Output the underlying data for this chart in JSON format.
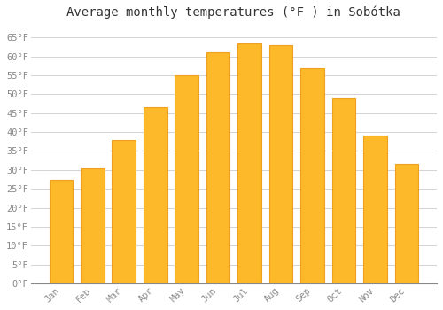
{
  "title": "Average monthly temperatures (°F ) in Sobótka",
  "months": [
    "Jan",
    "Feb",
    "Mar",
    "Apr",
    "May",
    "Jun",
    "Jul",
    "Aug",
    "Sep",
    "Oct",
    "Nov",
    "Dec"
  ],
  "values": [
    27.5,
    30.5,
    38.0,
    46.5,
    55.0,
    61.0,
    63.5,
    63.0,
    57.0,
    49.0,
    39.0,
    31.5
  ],
  "bar_color_inner": "#FDB92A",
  "bar_color_edge": "#F0A020",
  "background_color": "#FFFFFF",
  "grid_color": "#CCCCCC",
  "ylim": [
    0,
    68
  ],
  "yticks": [
    0,
    5,
    10,
    15,
    20,
    25,
    30,
    35,
    40,
    45,
    50,
    55,
    60,
    65
  ],
  "title_fontsize": 10,
  "tick_fontsize": 7.5,
  "tick_color": "#888888",
  "title_color": "#333333",
  "bar_width": 0.75
}
